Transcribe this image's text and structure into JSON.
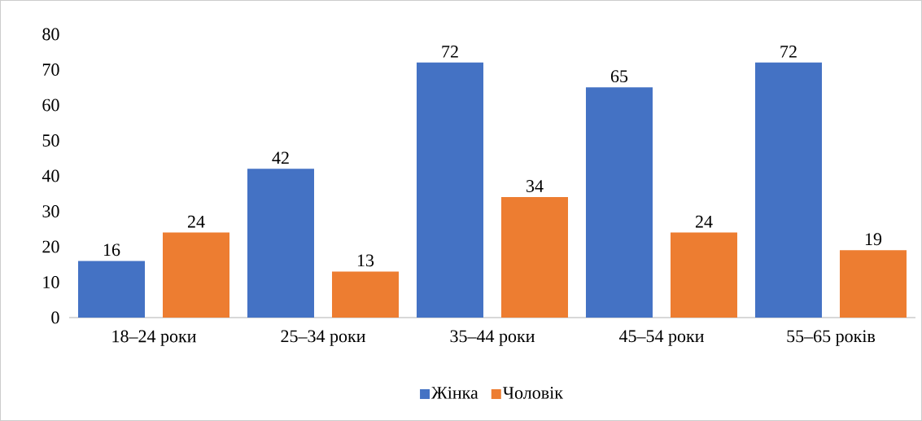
{
  "chart_data": {
    "type": "bar",
    "categories": [
      "18–24 роки",
      "25–34 роки",
      "35–44 роки",
      "45–54 роки",
      "55–65 років"
    ],
    "series": [
      {
        "name": "Жінка",
        "color": "#4472c4",
        "values": [
          16,
          42,
          72,
          65,
          72
        ]
      },
      {
        "name": "Чоловік",
        "color": "#ed7d31",
        "values": [
          24,
          13,
          34,
          24,
          19
        ]
      }
    ],
    "ylim": [
      0,
      80
    ],
    "yticks": [
      0,
      10,
      20,
      30,
      40,
      50,
      60,
      70,
      80
    ],
    "data_labels": true,
    "legend": "bottom",
    "grid": false
  }
}
